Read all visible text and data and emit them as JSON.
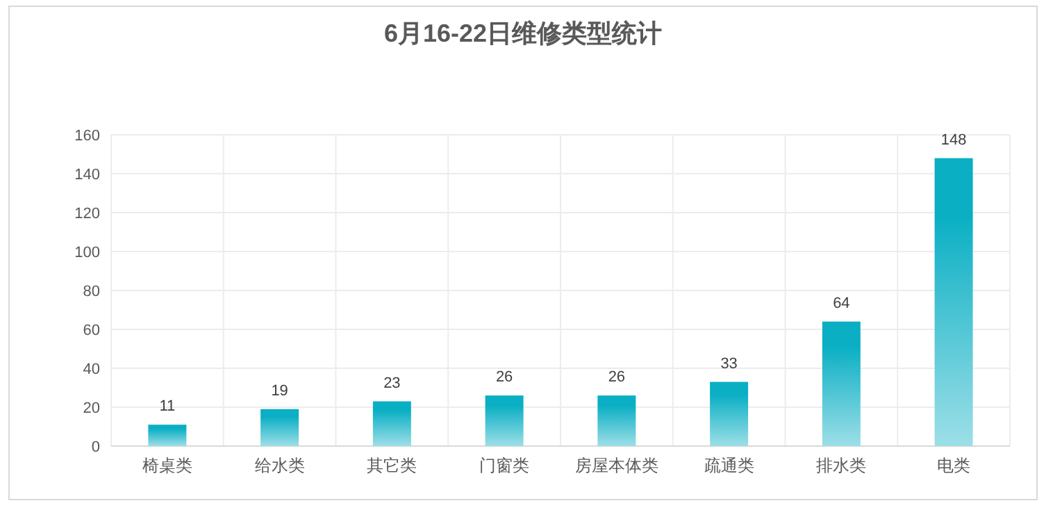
{
  "chart_data": {
    "type": "bar",
    "title": "6月16-22日维修类型统计",
    "categories": [
      "椅桌类",
      "给水类",
      "其它类",
      "门窗类",
      "房屋本体类",
      "疏通类",
      "排水类",
      "电类"
    ],
    "values": [
      11,
      19,
      23,
      26,
      26,
      33,
      64,
      148
    ],
    "color": "#0aafc4",
    "ylim": [
      0,
      160
    ],
    "yticks": [
      0,
      20,
      40,
      60,
      80,
      100,
      120,
      140,
      160
    ],
    "grid": true,
    "data_labels": true
  }
}
